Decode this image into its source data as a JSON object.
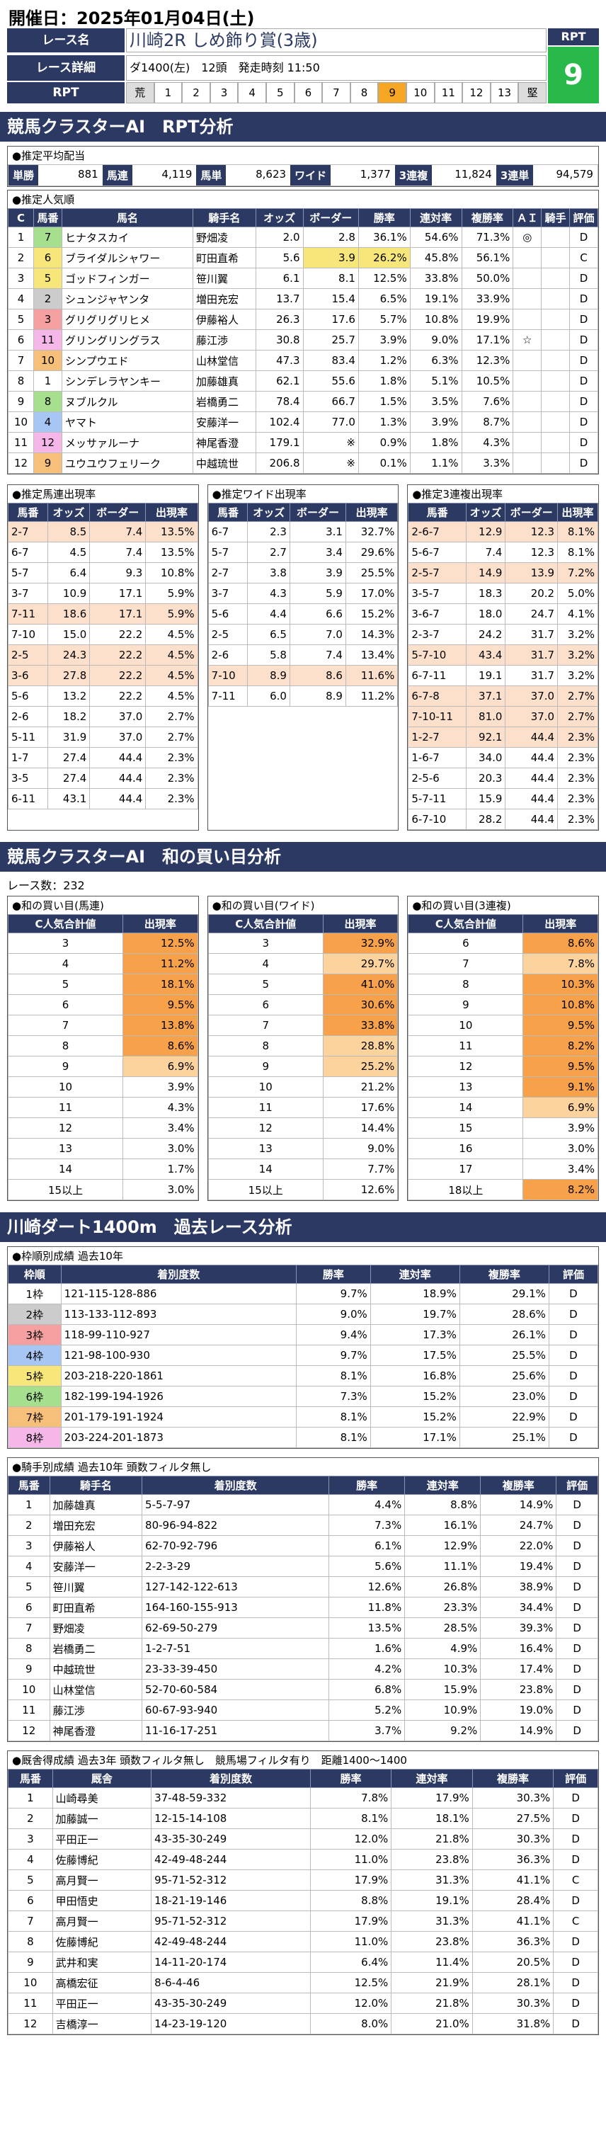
{
  "date_label": "開催日：2025年01月04日(土)",
  "header": {
    "race_name_label": "レース名",
    "race_name": "川崎2R しめ飾り賞(3歳)",
    "detail_label": "レース詳細",
    "detail": "ダ1400(左)　12頭　発走時刻 11:50",
    "rpt_label": "RPT",
    "rpt_box_label": "RPT",
    "rpt_value": "9",
    "rpt_scale": [
      "荒",
      "1",
      "2",
      "3",
      "4",
      "5",
      "6",
      "7",
      "8",
      "9",
      "10",
      "11",
      "12",
      "13",
      "堅"
    ],
    "rpt_selected": "9"
  },
  "section1_title": "競馬クラスターAI　RPT分析",
  "payout": {
    "caption": "●推定平均配当",
    "items": [
      {
        "l": "単勝",
        "v": "881"
      },
      {
        "l": "馬連",
        "v": "4,119"
      },
      {
        "l": "馬単",
        "v": "8,623"
      },
      {
        "l": "ワイド",
        "v": "1,377"
      },
      {
        "l": "3連複",
        "v": "11,824"
      },
      {
        "l": "3連単",
        "v": "94,579"
      }
    ]
  },
  "pop": {
    "caption": "●推定人気順",
    "headers": [
      "C",
      "馬番",
      "馬名",
      "騎手名",
      "オッズ",
      "ボーダー",
      "勝率",
      "連対率",
      "複勝率",
      "ＡＩ",
      "騎手",
      "評価"
    ],
    "rows": [
      [
        "1",
        "7",
        "ヒナタスカイ",
        "野畑凌",
        "2.0",
        "2.8",
        "36.1%",
        "54.6%",
        "71.3%",
        "◎",
        "",
        "D"
      ],
      [
        "2",
        "6",
        "ブライダルシャワー",
        "町田直希",
        "5.6",
        "3.9",
        "26.2%",
        "45.8%",
        "56.1%",
        "",
        "",
        "C"
      ],
      [
        "3",
        "5",
        "ゴッドフィンガー",
        "笹川翼",
        "6.1",
        "8.1",
        "12.5%",
        "33.8%",
        "50.0%",
        "",
        "",
        "D"
      ],
      [
        "4",
        "2",
        "シュンジャヤンタ",
        "増田充宏",
        "13.7",
        "15.4",
        "6.5%",
        "19.1%",
        "33.9%",
        "",
        "",
        "D"
      ],
      [
        "5",
        "3",
        "グリグリグリヒメ",
        "伊藤裕人",
        "26.3",
        "17.6",
        "5.7%",
        "10.8%",
        "19.9%",
        "",
        "",
        "D"
      ],
      [
        "6",
        "11",
        "グリングリングラス",
        "藤江渉",
        "30.8",
        "25.7",
        "3.9%",
        "9.0%",
        "17.1%",
        "☆",
        "",
        "D"
      ],
      [
        "7",
        "10",
        "シンプウエド",
        "山林堂信",
        "47.3",
        "83.4",
        "1.2%",
        "6.3%",
        "12.3%",
        "",
        "",
        "D"
      ],
      [
        "8",
        "1",
        "シンデレラヤンキー",
        "加藤雄真",
        "62.1",
        "55.6",
        "1.8%",
        "5.1%",
        "10.5%",
        "",
        "",
        "D"
      ],
      [
        "9",
        "8",
        "ヌブルクル",
        "岩橋勇二",
        "78.4",
        "66.7",
        "1.5%",
        "3.5%",
        "7.6%",
        "",
        "",
        "D"
      ],
      [
        "10",
        "4",
        "ヤマト",
        "安藤洋一",
        "102.4",
        "77.0",
        "1.3%",
        "3.9%",
        "8.7%",
        "",
        "",
        "D"
      ],
      [
        "11",
        "12",
        "メッサァルーナ",
        "神尾香澄",
        "179.1",
        "※",
        "0.9%",
        "1.8%",
        "4.3%",
        "",
        "",
        "D"
      ],
      [
        "12",
        "9",
        "ユウユウフェリーク",
        "中越琉世",
        "206.8",
        "※",
        "0.1%",
        "1.1%",
        "3.3%",
        "",
        "",
        "D"
      ]
    ]
  },
  "umaren": {
    "caption": "●推定馬連出現率",
    "headers": [
      "馬番",
      "オッズ",
      "ボーダー",
      "出現率"
    ],
    "rows": [
      [
        "2-7",
        "8.5",
        "7.4",
        "13.5%"
      ],
      [
        "6-7",
        "4.5",
        "7.4",
        "13.5%"
      ],
      [
        "5-7",
        "6.4",
        "9.3",
        "10.8%"
      ],
      [
        "3-7",
        "10.9",
        "17.1",
        "5.9%"
      ],
      [
        "7-11",
        "18.6",
        "17.1",
        "5.9%"
      ],
      [
        "7-10",
        "15.0",
        "22.2",
        "4.5%"
      ],
      [
        "2-5",
        "24.3",
        "22.2",
        "4.5%"
      ],
      [
        "3-6",
        "27.8",
        "22.2",
        "4.5%"
      ],
      [
        "5-6",
        "13.2",
        "22.2",
        "4.5%"
      ],
      [
        "2-6",
        "18.2",
        "37.0",
        "2.7%"
      ],
      [
        "5-11",
        "31.9",
        "37.0",
        "2.7%"
      ],
      [
        "1-7",
        "27.4",
        "44.4",
        "2.3%"
      ],
      [
        "3-5",
        "27.4",
        "44.4",
        "2.3%"
      ],
      [
        "6-11",
        "43.1",
        "44.4",
        "2.3%"
      ]
    ]
  },
  "wide": {
    "caption": "●推定ワイド出現率",
    "headers": [
      "馬番",
      "オッズ",
      "ボーダー",
      "出現率"
    ],
    "rows": [
      [
        "6-7",
        "2.3",
        "3.1",
        "32.7%"
      ],
      [
        "5-7",
        "2.7",
        "3.4",
        "29.6%"
      ],
      [
        "2-7",
        "3.8",
        "3.9",
        "25.5%"
      ],
      [
        "3-7",
        "4.3",
        "5.9",
        "17.0%"
      ],
      [
        "5-6",
        "4.4",
        "6.6",
        "15.2%"
      ],
      [
        "2-5",
        "6.5",
        "7.0",
        "14.3%"
      ],
      [
        "2-6",
        "5.8",
        "7.4",
        "13.4%"
      ],
      [
        "7-10",
        "8.9",
        "8.6",
        "11.6%"
      ],
      [
        "7-11",
        "6.0",
        "8.9",
        "11.2%"
      ]
    ]
  },
  "trio": {
    "caption": "●推定3連複出現率",
    "headers": [
      "馬番",
      "オッズ",
      "ボーダー",
      "出現率"
    ],
    "rows": [
      [
        "2-6-7",
        "12.9",
        "12.3",
        "8.1%"
      ],
      [
        "5-6-7",
        "7.4",
        "12.3",
        "8.1%"
      ],
      [
        "2-5-7",
        "14.9",
        "13.9",
        "7.2%"
      ],
      [
        "3-5-7",
        "18.3",
        "20.2",
        "5.0%"
      ],
      [
        "3-6-7",
        "18.0",
        "24.7",
        "4.1%"
      ],
      [
        "2-3-7",
        "24.2",
        "31.7",
        "3.2%"
      ],
      [
        "5-7-10",
        "43.4",
        "31.7",
        "3.2%"
      ],
      [
        "6-7-11",
        "19.1",
        "31.7",
        "3.2%"
      ],
      [
        "6-7-8",
        "37.1",
        "37.0",
        "2.7%"
      ],
      [
        "7-10-11",
        "81.0",
        "37.0",
        "2.7%"
      ],
      [
        "1-2-7",
        "92.1",
        "44.4",
        "2.3%"
      ],
      [
        "1-6-7",
        "34.0",
        "44.4",
        "2.3%"
      ],
      [
        "2-5-6",
        "20.3",
        "44.4",
        "2.3%"
      ],
      [
        "5-7-11",
        "15.9",
        "44.4",
        "2.3%"
      ],
      [
        "6-7-10",
        "28.2",
        "44.4",
        "2.3%"
      ]
    ]
  },
  "section2_title": "競馬クラスターAI　和の買い目分析",
  "race_count": "レース数：232",
  "sum_umaren": {
    "caption": "●和の買い目(馬連)",
    "h1": "C人気合計値",
    "h2": "出現率",
    "rows": [
      [
        "3",
        "12.5%"
      ],
      [
        "4",
        "11.2%"
      ],
      [
        "5",
        "18.1%"
      ],
      [
        "6",
        "9.5%"
      ],
      [
        "7",
        "13.8%"
      ],
      [
        "8",
        "8.6%"
      ],
      [
        "9",
        "6.9%"
      ],
      [
        "10",
        "3.9%"
      ],
      [
        "11",
        "4.3%"
      ],
      [
        "12",
        "3.4%"
      ],
      [
        "13",
        "3.0%"
      ],
      [
        "14",
        "1.7%"
      ],
      [
        "15以上",
        "3.0%"
      ]
    ]
  },
  "sum_wide": {
    "caption": "●和の買い目(ワイド)",
    "h1": "C人気合計値",
    "h2": "出現率",
    "rows": [
      [
        "3",
        "32.9%"
      ],
      [
        "4",
        "29.7%"
      ],
      [
        "5",
        "41.0%"
      ],
      [
        "6",
        "30.6%"
      ],
      [
        "7",
        "33.8%"
      ],
      [
        "8",
        "28.8%"
      ],
      [
        "9",
        "25.2%"
      ],
      [
        "10",
        "21.2%"
      ],
      [
        "11",
        "17.6%"
      ],
      [
        "12",
        "14.4%"
      ],
      [
        "13",
        "9.0%"
      ],
      [
        "14",
        "7.7%"
      ],
      [
        "15以上",
        "12.6%"
      ]
    ]
  },
  "sum_trio": {
    "caption": "●和の買い目(3連複)",
    "h1": "C人気合計値",
    "h2": "出現率",
    "rows": [
      [
        "6",
        "8.6%"
      ],
      [
        "7",
        "7.8%"
      ],
      [
        "8",
        "10.3%"
      ],
      [
        "9",
        "10.8%"
      ],
      [
        "10",
        "9.5%"
      ],
      [
        "11",
        "8.2%"
      ],
      [
        "12",
        "9.5%"
      ],
      [
        "13",
        "9.1%"
      ],
      [
        "14",
        "6.9%"
      ],
      [
        "15",
        "3.9%"
      ],
      [
        "16",
        "3.0%"
      ],
      [
        "17",
        "3.4%"
      ],
      [
        "18以上",
        "8.2%"
      ]
    ]
  },
  "section3_title": "川崎ダート1400m　過去レース分析",
  "waku": {
    "caption": "●枠順別成績 過去10年",
    "headers": [
      "枠順",
      "着別度数",
      "勝率",
      "連対率",
      "複勝率",
      "評価"
    ],
    "rows": [
      [
        "1枠",
        "121-115-128-886",
        "9.7%",
        "18.9%",
        "29.1%",
        "D"
      ],
      [
        "2枠",
        "113-133-112-893",
        "9.0%",
        "19.7%",
        "28.6%",
        "D"
      ],
      [
        "3枠",
        "118-99-110-927",
        "9.4%",
        "17.3%",
        "26.1%",
        "D"
      ],
      [
        "4枠",
        "121-98-100-930",
        "9.7%",
        "17.5%",
        "25.5%",
        "D"
      ],
      [
        "5枠",
        "203-218-220-1861",
        "8.1%",
        "16.8%",
        "25.6%",
        "D"
      ],
      [
        "6枠",
        "182-199-194-1926",
        "7.3%",
        "15.2%",
        "23.0%",
        "D"
      ],
      [
        "7枠",
        "201-179-191-1924",
        "8.1%",
        "15.2%",
        "22.9%",
        "D"
      ],
      [
        "8枠",
        "203-224-201-1873",
        "8.1%",
        "17.1%",
        "25.1%",
        "D"
      ]
    ]
  },
  "jockey": {
    "caption": "●騎手別成績 過去10年 頭数フィルタ無し",
    "headers": [
      "馬番",
      "騎手名",
      "着別度数",
      "勝率",
      "連対率",
      "複勝率",
      "評価"
    ],
    "rows": [
      [
        "1",
        "加藤雄真",
        "5-5-7-97",
        "4.4%",
        "8.8%",
        "14.9%",
        "D"
      ],
      [
        "2",
        "増田充宏",
        "80-96-94-822",
        "7.3%",
        "16.1%",
        "24.7%",
        "D"
      ],
      [
        "3",
        "伊藤裕人",
        "62-70-92-796",
        "6.1%",
        "12.9%",
        "22.0%",
        "D"
      ],
      [
        "4",
        "安藤洋一",
        "2-2-3-29",
        "5.6%",
        "11.1%",
        "19.4%",
        "D"
      ],
      [
        "5",
        "笹川翼",
        "127-142-122-613",
        "12.6%",
        "26.8%",
        "38.9%",
        "D"
      ],
      [
        "6",
        "町田直希",
        "164-160-155-913",
        "11.8%",
        "23.3%",
        "34.4%",
        "D"
      ],
      [
        "7",
        "野畑凌",
        "62-69-50-279",
        "13.5%",
        "28.5%",
        "39.3%",
        "D"
      ],
      [
        "8",
        "岩橋勇二",
        "1-2-7-51",
        "1.6%",
        "4.9%",
        "16.4%",
        "D"
      ],
      [
        "9",
        "中越琉世",
        "23-33-39-450",
        "4.2%",
        "10.3%",
        "17.4%",
        "D"
      ],
      [
        "10",
        "山林堂信",
        "52-70-60-584",
        "6.8%",
        "15.9%",
        "23.8%",
        "D"
      ],
      [
        "11",
        "藤江渉",
        "60-67-93-940",
        "5.2%",
        "10.9%",
        "19.0%",
        "D"
      ],
      [
        "12",
        "神尾香澄",
        "11-16-17-251",
        "3.7%",
        "9.2%",
        "14.9%",
        "D"
      ]
    ]
  },
  "sire": {
    "caption": "●厩舎得成績 過去3年 頭数フィルタ無し　競馬場フィルタ有り　距離1400～1400",
    "headers": [
      "馬番",
      "厩舎",
      "着別度数",
      "勝率",
      "連対率",
      "複勝率",
      "評価"
    ],
    "rows": [
      [
        "1",
        "山崎尋美",
        "37-48-59-332",
        "7.8%",
        "17.9%",
        "30.3%",
        "D"
      ],
      [
        "2",
        "加藤誠一",
        "12-15-14-108",
        "8.1%",
        "18.1%",
        "27.5%",
        "D"
      ],
      [
        "3",
        "平田正一",
        "43-35-30-249",
        "12.0%",
        "21.8%",
        "30.3%",
        "D"
      ],
      [
        "4",
        "佐藤博紀",
        "42-49-48-244",
        "11.0%",
        "23.8%",
        "36.3%",
        "D"
      ],
      [
        "5",
        "高月賢一",
        "95-71-52-312",
        "17.9%",
        "31.3%",
        "41.1%",
        "C"
      ],
      [
        "6",
        "甲田悟史",
        "18-21-19-146",
        "8.8%",
        "19.1%",
        "28.4%",
        "D"
      ],
      [
        "7",
        "高月賢一",
        "95-71-52-312",
        "17.9%",
        "31.3%",
        "41.1%",
        "C"
      ],
      [
        "8",
        "佐藤博紀",
        "42-49-48-244",
        "11.0%",
        "23.8%",
        "36.3%",
        "D"
      ],
      [
        "9",
        "武井和実",
        "14-11-20-174",
        "6.4%",
        "11.4%",
        "20.5%",
        "D"
      ],
      [
        "10",
        "高橋宏征",
        "8-6-4-46",
        "12.5%",
        "21.9%",
        "28.1%",
        "D"
      ],
      [
        "11",
        "平田正一",
        "43-35-30-249",
        "12.0%",
        "21.8%",
        "30.3%",
        "D"
      ],
      [
        "12",
        "吉橋淳一",
        "14-23-19-120",
        "8.0%",
        "21.0%",
        "31.8%",
        "D"
      ]
    ]
  }
}
